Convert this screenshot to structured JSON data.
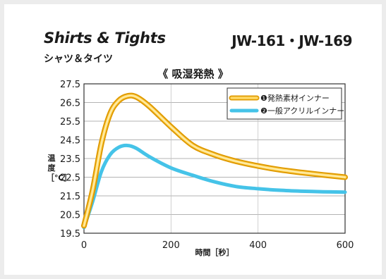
{
  "header": {
    "title_en": "Shirts & Tights",
    "model": "JW-161・JW-169",
    "title_jp": "シャツ＆タイツ",
    "subtitle": "《 吸湿発熱 》"
  },
  "chart_data": {
    "type": "line",
    "xlabel": "時間［秒］",
    "ylabel": "温度［℃］",
    "xlim": [
      0,
      600
    ],
    "ylim": [
      19.5,
      27.5
    ],
    "x_ticks": [
      0,
      200,
      400,
      600
    ],
    "y_ticks": [
      19.5,
      20.5,
      21.5,
      22.5,
      23.5,
      24.5,
      25.5,
      26.5,
      27.5
    ],
    "grid": true,
    "legend_position": "top-right",
    "series": [
      {
        "name": "❶発熱素材インナー",
        "color": "#f0b820",
        "x": [
          0,
          20,
          40,
          60,
          80,
          100,
          120,
          150,
          200,
          250,
          300,
          350,
          400,
          450,
          500,
          550,
          600
        ],
        "y": [
          19.9,
          21.8,
          24.3,
          25.9,
          26.6,
          26.85,
          26.8,
          26.3,
          25.2,
          24.2,
          23.7,
          23.35,
          23.1,
          22.9,
          22.75,
          22.62,
          22.5
        ]
      },
      {
        "name": "❷一般アクリルインナー",
        "color": "#45c3e8",
        "x": [
          0,
          20,
          40,
          60,
          80,
          100,
          120,
          150,
          200,
          250,
          300,
          350,
          400,
          450,
          500,
          550,
          600
        ],
        "y": [
          19.8,
          21.2,
          22.8,
          23.7,
          24.1,
          24.2,
          24.05,
          23.6,
          23.0,
          22.6,
          22.25,
          22.0,
          21.88,
          21.8,
          21.75,
          21.72,
          21.7
        ]
      }
    ]
  }
}
